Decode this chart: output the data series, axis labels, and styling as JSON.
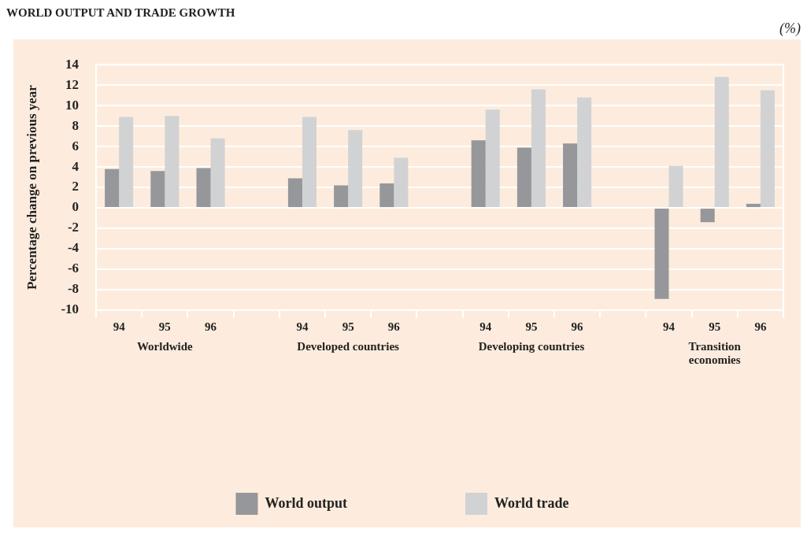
{
  "chart_data": {
    "type": "bar",
    "title": "WORLD OUTPUT AND TRADE GROWTH",
    "ylabel": "Percentage change on previous year",
    "categories": [
      "94",
      "95",
      "96",
      null,
      "94",
      "95",
      "96",
      null,
      "94",
      "95",
      "96",
      null,
      "94",
      "95",
      "96"
    ],
    "series": [
      {
        "name": "World output",
        "color": "#96979b",
        "values": [
          3.8,
          3.6,
          3.9,
          null,
          2.9,
          2.2,
          2.4,
          null,
          6.6,
          5.9,
          6.3,
          null,
          -8.9,
          -1.4,
          0.4
        ]
      },
      {
        "name": "World trade",
        "color": "#d1d2d4",
        "values": [
          8.9,
          9.0,
          6.8,
          null,
          8.9,
          7.6,
          4.9,
          null,
          9.6,
          11.6,
          10.8,
          null,
          4.1,
          12.8,
          11.5
        ]
      }
    ],
    "ylim": [
      -10,
      14
    ],
    "yticks": [
      -10,
      -8,
      -6,
      -4,
      -2,
      0,
      2,
      4,
      6,
      8,
      10,
      12,
      14
    ],
    "grid": "y",
    "legend": "bottom",
    "annotations": [
      "(%)",
      "Worldwide",
      "Developed countries",
      "Developing countries",
      "Transition economies"
    ]
  }
}
